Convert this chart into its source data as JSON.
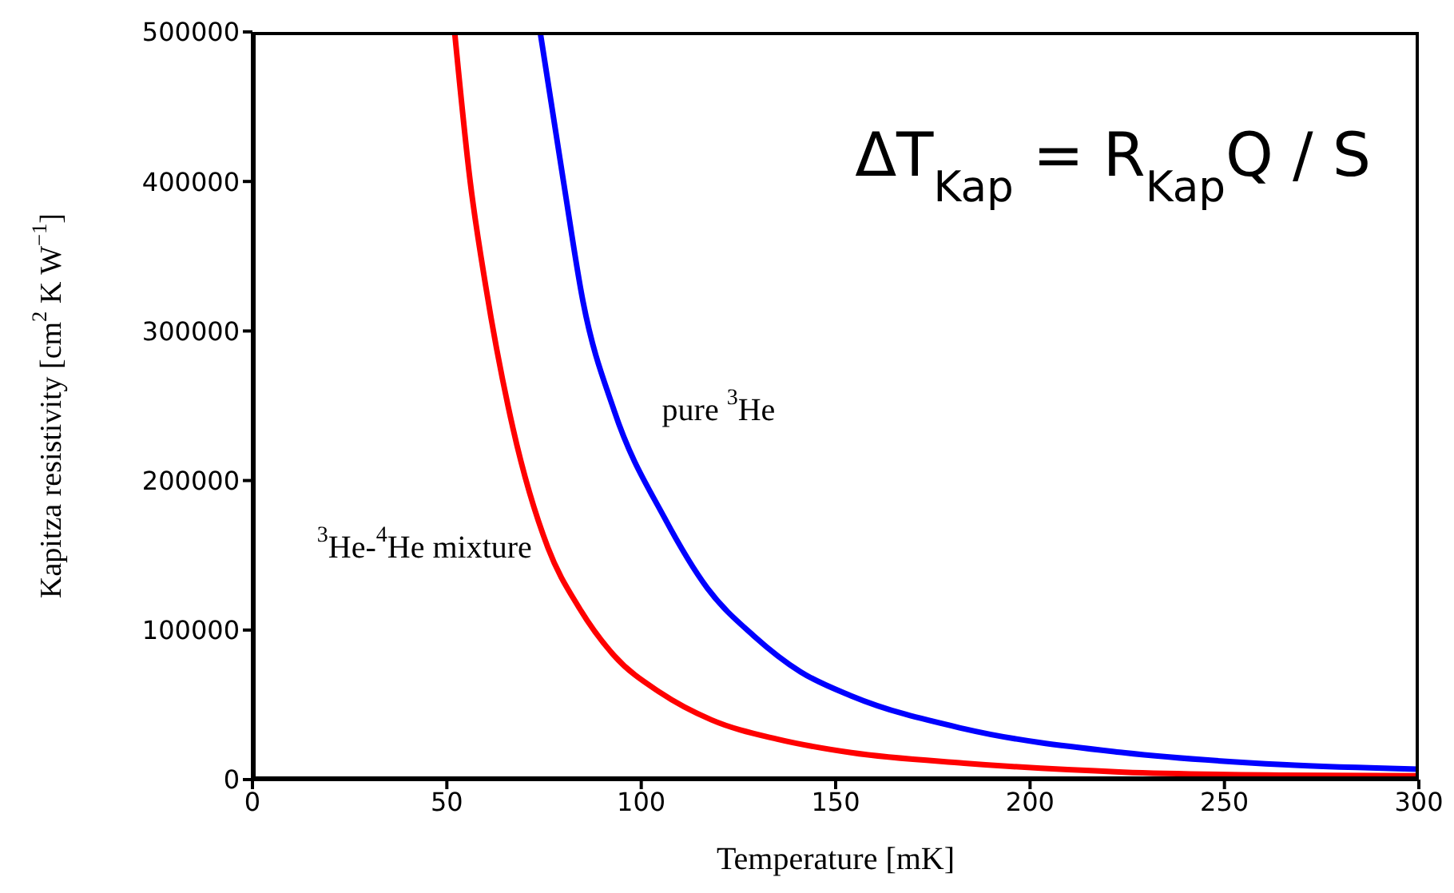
{
  "chart_data": {
    "type": "line",
    "xlabel": "Temperature [mK]",
    "ylabel": "Kapitza resistivity [cm$^{2}$ K W$^{−1}$]",
    "xlim": [
      0,
      300
    ],
    "xticks": [
      0,
      50,
      100,
      150,
      200,
      250,
      300
    ],
    "ylim": [
      0,
      500000
    ],
    "yticks": [
      0,
      100000,
      200000,
      300000,
      400000,
      500000
    ],
    "grid": false,
    "line_style": "solid",
    "marker": "none",
    "series": [
      {
        "name": "$^{3}$He-$^{4}$He mixture",
        "color": "#ff0000",
        "x": [
          52,
          56,
          60,
          67,
          76,
          84,
          93,
          105,
          118,
          135,
          154,
          183,
          224,
          265,
          300
        ],
        "values": [
          500000,
          400000,
          330000,
          235000,
          155000,
          115000,
          83000,
          58000,
          40000,
          27000,
          18000,
          11000,
          5000,
          3000,
          2500
        ]
      },
      {
        "name": "pure $^{3}$He",
        "color": "#0000ff",
        "x": [
          74,
          80,
          85,
          93,
          106,
          117,
          129,
          141,
          154,
          183,
          224,
          265,
          300
        ],
        "values": [
          500000,
          400000,
          320000,
          247000,
          175000,
          128000,
          96000,
          72000,
          56000,
          34000,
          18000,
          10000,
          7000
        ]
      }
    ],
    "annotations": [
      "ΔT$_{Kap}$ = R$_{Kap}$Q / S"
    ]
  }
}
